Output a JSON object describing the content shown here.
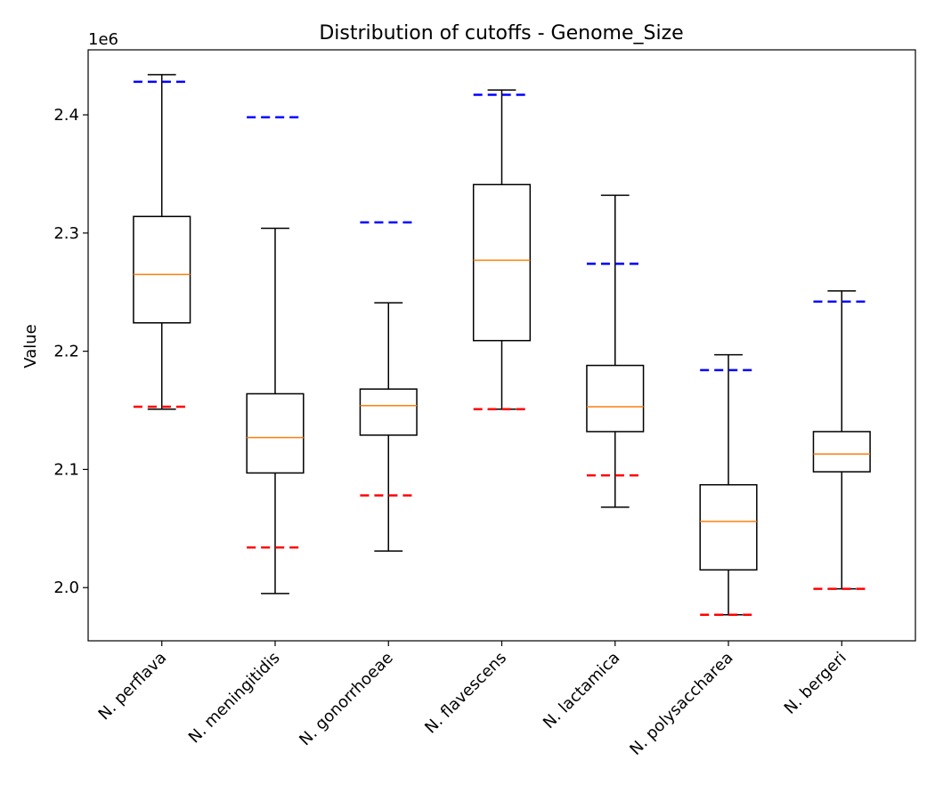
{
  "chart_data": {
    "type": "box",
    "title": "Distribution of cutoffs - Genome_Size",
    "xlabel": "",
    "ylabel": "Value",
    "y_scale_label": "1e6",
    "y_multiplier": 1000000,
    "ylim": [
      1.955,
      2.455
    ],
    "y_ticks": [
      2.0,
      2.1,
      2.2,
      2.3,
      2.4
    ],
    "y_tick_labels": [
      "2.0",
      "2.1",
      "2.2",
      "2.3",
      "2.4"
    ],
    "grid": false,
    "colors": {
      "box": "#000000",
      "median": "#ff7f0e",
      "upper_cutoff": "#0000ff",
      "lower_cutoff": "#ff0000"
    },
    "categories": [
      "N. perflava",
      "N. meningitidis",
      "N. gonorrhoeae",
      "N. flavescens",
      "N. lactamica",
      "N. polysaccharea",
      "N. bergeri"
    ],
    "boxes": [
      {
        "whisker_low": 2.151,
        "q1": 2.224,
        "median": 2.265,
        "q3": 2.314,
        "whisker_high": 2.434,
        "upper_cutoff": 2.428,
        "lower_cutoff": 2.153
      },
      {
        "whisker_low": 1.995,
        "q1": 2.097,
        "median": 2.127,
        "q3": 2.164,
        "whisker_high": 2.304,
        "upper_cutoff": 2.398,
        "lower_cutoff": 2.034
      },
      {
        "whisker_low": 2.031,
        "q1": 2.129,
        "median": 2.154,
        "q3": 2.168,
        "whisker_high": 2.241,
        "upper_cutoff": 2.309,
        "lower_cutoff": 2.078
      },
      {
        "whisker_low": 2.151,
        "q1": 2.209,
        "median": 2.277,
        "q3": 2.341,
        "whisker_high": 2.421,
        "upper_cutoff": 2.417,
        "lower_cutoff": 2.151
      },
      {
        "whisker_low": 2.068,
        "q1": 2.132,
        "median": 2.153,
        "q3": 2.188,
        "whisker_high": 2.332,
        "upper_cutoff": 2.274,
        "lower_cutoff": 2.095
      },
      {
        "whisker_low": 1.977,
        "q1": 2.015,
        "median": 2.056,
        "q3": 2.087,
        "whisker_high": 2.197,
        "upper_cutoff": 2.184,
        "lower_cutoff": 1.977
      },
      {
        "whisker_low": 1.999,
        "q1": 2.098,
        "median": 2.113,
        "q3": 2.132,
        "whisker_high": 2.251,
        "upper_cutoff": 2.242,
        "lower_cutoff": 1.999
      }
    ]
  }
}
